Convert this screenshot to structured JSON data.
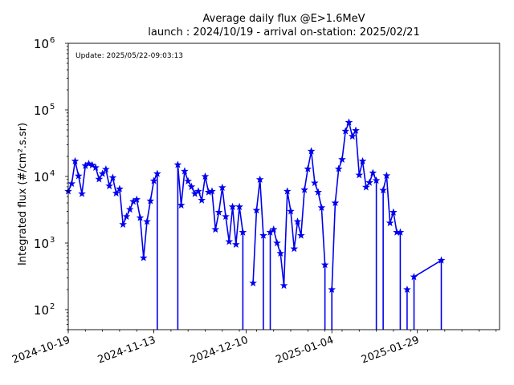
{
  "chart_data": {
    "type": "line",
    "title": "Average daily flux @E>1.6MeV",
    "subtitle": "launch : 2024/10/19 - arrival on-station: 2025/02/21",
    "annotation": "Update: 2025/05/22-09:03:13",
    "xlabel": "",
    "ylabel": "Integrated flux (#/cm².s.sr)",
    "y_scale": "log",
    "ylim": [
      50,
      1000000
    ],
    "xlim": [
      "2024-10-19",
      "2025-02-22"
    ],
    "x_ticks": [
      "2024-10-19",
      "2024-11-13",
      "2024-12-10",
      "2025-01-04",
      "2025-01-29"
    ],
    "y_ticks": [
      {
        "value": 100,
        "base": "10",
        "exp": "2"
      },
      {
        "value": 1000,
        "base": "10",
        "exp": "3"
      },
      {
        "value": 10000,
        "base": "10",
        "exp": "4"
      },
      {
        "value": 100000,
        "base": "10",
        "exp": "5"
      },
      {
        "value": 1000000,
        "base": "10",
        "exp": "6"
      }
    ],
    "grid": false,
    "series": [
      {
        "color": "#0000ee",
        "marker": "star",
        "points": [
          [
            "2024-10-19",
            6000
          ],
          [
            "2024-10-20",
            7800
          ],
          [
            "2024-10-21",
            17000
          ],
          [
            "2024-10-22",
            10200
          ],
          [
            "2024-10-23",
            5500
          ],
          [
            "2024-10-24",
            14500
          ],
          [
            "2024-10-25",
            15500
          ],
          [
            "2024-10-26",
            14800
          ],
          [
            "2024-10-27",
            13600
          ],
          [
            "2024-10-28",
            9100
          ],
          [
            "2024-10-29",
            11000
          ],
          [
            "2024-10-30",
            12800
          ],
          [
            "2024-10-31",
            7200
          ],
          [
            "2024-11-01",
            9600
          ],
          [
            "2024-11-02",
            5600
          ],
          [
            "2024-11-03",
            6500
          ],
          [
            "2024-11-04",
            1900
          ],
          [
            "2024-11-05",
            2500
          ],
          [
            "2024-11-06",
            3200
          ],
          [
            "2024-11-07",
            4200
          ],
          [
            "2024-11-08",
            4500
          ],
          [
            "2024-11-09",
            2400
          ],
          [
            "2024-11-10",
            600
          ],
          [
            "2024-11-11",
            2100
          ],
          [
            "2024-11-12",
            4300
          ],
          [
            "2024-11-13",
            8600
          ],
          [
            "2024-11-14",
            11000
          ],
          [
            "2024-11-15",
            null
          ],
          [
            "2024-11-16",
            null
          ],
          [
            "2024-11-17",
            null
          ],
          [
            "2024-11-18",
            null
          ],
          [
            "2024-11-19",
            null
          ],
          [
            "2024-11-20",
            15000
          ],
          [
            "2024-11-21",
            3700
          ],
          [
            "2024-11-22",
            12000
          ],
          [
            "2024-11-23",
            8500
          ],
          [
            "2024-11-24",
            7000
          ],
          [
            "2024-11-25",
            5500
          ],
          [
            "2024-11-26",
            6000
          ],
          [
            "2024-11-27",
            4400
          ],
          [
            "2024-11-28",
            10000
          ],
          [
            "2024-11-29",
            5800
          ],
          [
            "2024-11-30",
            6000
          ],
          [
            "2024-12-01",
            1600
          ],
          [
            "2024-12-02",
            2900
          ],
          [
            "2024-12-03",
            6800
          ],
          [
            "2024-12-04",
            2500
          ],
          [
            "2024-12-05",
            1050
          ],
          [
            "2024-12-06",
            3500
          ],
          [
            "2024-12-07",
            950
          ],
          [
            "2024-12-08",
            3500
          ],
          [
            "2024-12-09",
            1450
          ],
          [
            "2024-12-10",
            null
          ],
          [
            "2024-12-11",
            null
          ],
          [
            "2024-12-12",
            250
          ],
          [
            "2024-12-13",
            3100
          ],
          [
            "2024-12-14",
            9000
          ],
          [
            "2024-12-15",
            1300
          ],
          [
            "2024-12-16",
            null
          ],
          [
            "2024-12-17",
            1450
          ],
          [
            "2024-12-18",
            1600
          ],
          [
            "2024-12-19",
            1000
          ],
          [
            "2024-12-20",
            700
          ],
          [
            "2024-12-21",
            230
          ],
          [
            "2024-12-22",
            6000
          ],
          [
            "2024-12-23",
            3000
          ],
          [
            "2024-12-24",
            820
          ],
          [
            "2024-12-25",
            2100
          ],
          [
            "2024-12-26",
            1300
          ],
          [
            "2024-12-27",
            6300
          ],
          [
            "2024-12-28",
            13000
          ],
          [
            "2024-12-29",
            24000
          ],
          [
            "2024-12-30",
            8000
          ],
          [
            "2024-12-31",
            5800
          ],
          [
            "2025-01-01",
            3400
          ],
          [
            "2025-01-02",
            470
          ],
          [
            "2025-01-03",
            null
          ],
          [
            "2025-01-04",
            200
          ],
          [
            "2025-01-05",
            4000
          ],
          [
            "2025-01-06",
            13000
          ],
          [
            "2025-01-07",
            18000
          ],
          [
            "2025-01-08",
            48000
          ],
          [
            "2025-01-09",
            65000
          ],
          [
            "2025-01-10",
            40000
          ],
          [
            "2025-01-11",
            49000
          ],
          [
            "2025-01-12",
            10500
          ],
          [
            "2025-01-13",
            17000
          ],
          [
            "2025-01-14",
            6900
          ],
          [
            "2025-01-15",
            8100
          ],
          [
            "2025-01-16",
            11300
          ],
          [
            "2025-01-17",
            8700
          ],
          [
            "2025-01-18",
            null
          ],
          [
            "2025-01-19",
            6200
          ],
          [
            "2025-01-20",
            10300
          ],
          [
            "2025-01-21",
            2000
          ],
          [
            "2025-01-22",
            2900
          ],
          [
            "2025-01-23",
            1450
          ],
          [
            "2025-01-24",
            1450
          ],
          [
            "2025-01-25",
            null
          ],
          [
            "2025-01-26",
            200
          ],
          [
            "2025-01-27",
            null
          ],
          [
            "2025-01-28",
            310
          ],
          [
            "2025-02-05",
            550
          ]
        ],
        "drops": [
          "2024-11-14",
          "2024-11-20",
          "2024-12-09",
          "2024-12-15",
          "2024-12-17",
          "2025-01-02",
          "2025-01-04",
          "2025-01-17",
          "2025-01-19",
          "2025-01-24",
          "2025-01-26",
          "2025-01-28",
          "2025-02-05"
        ]
      }
    ]
  }
}
